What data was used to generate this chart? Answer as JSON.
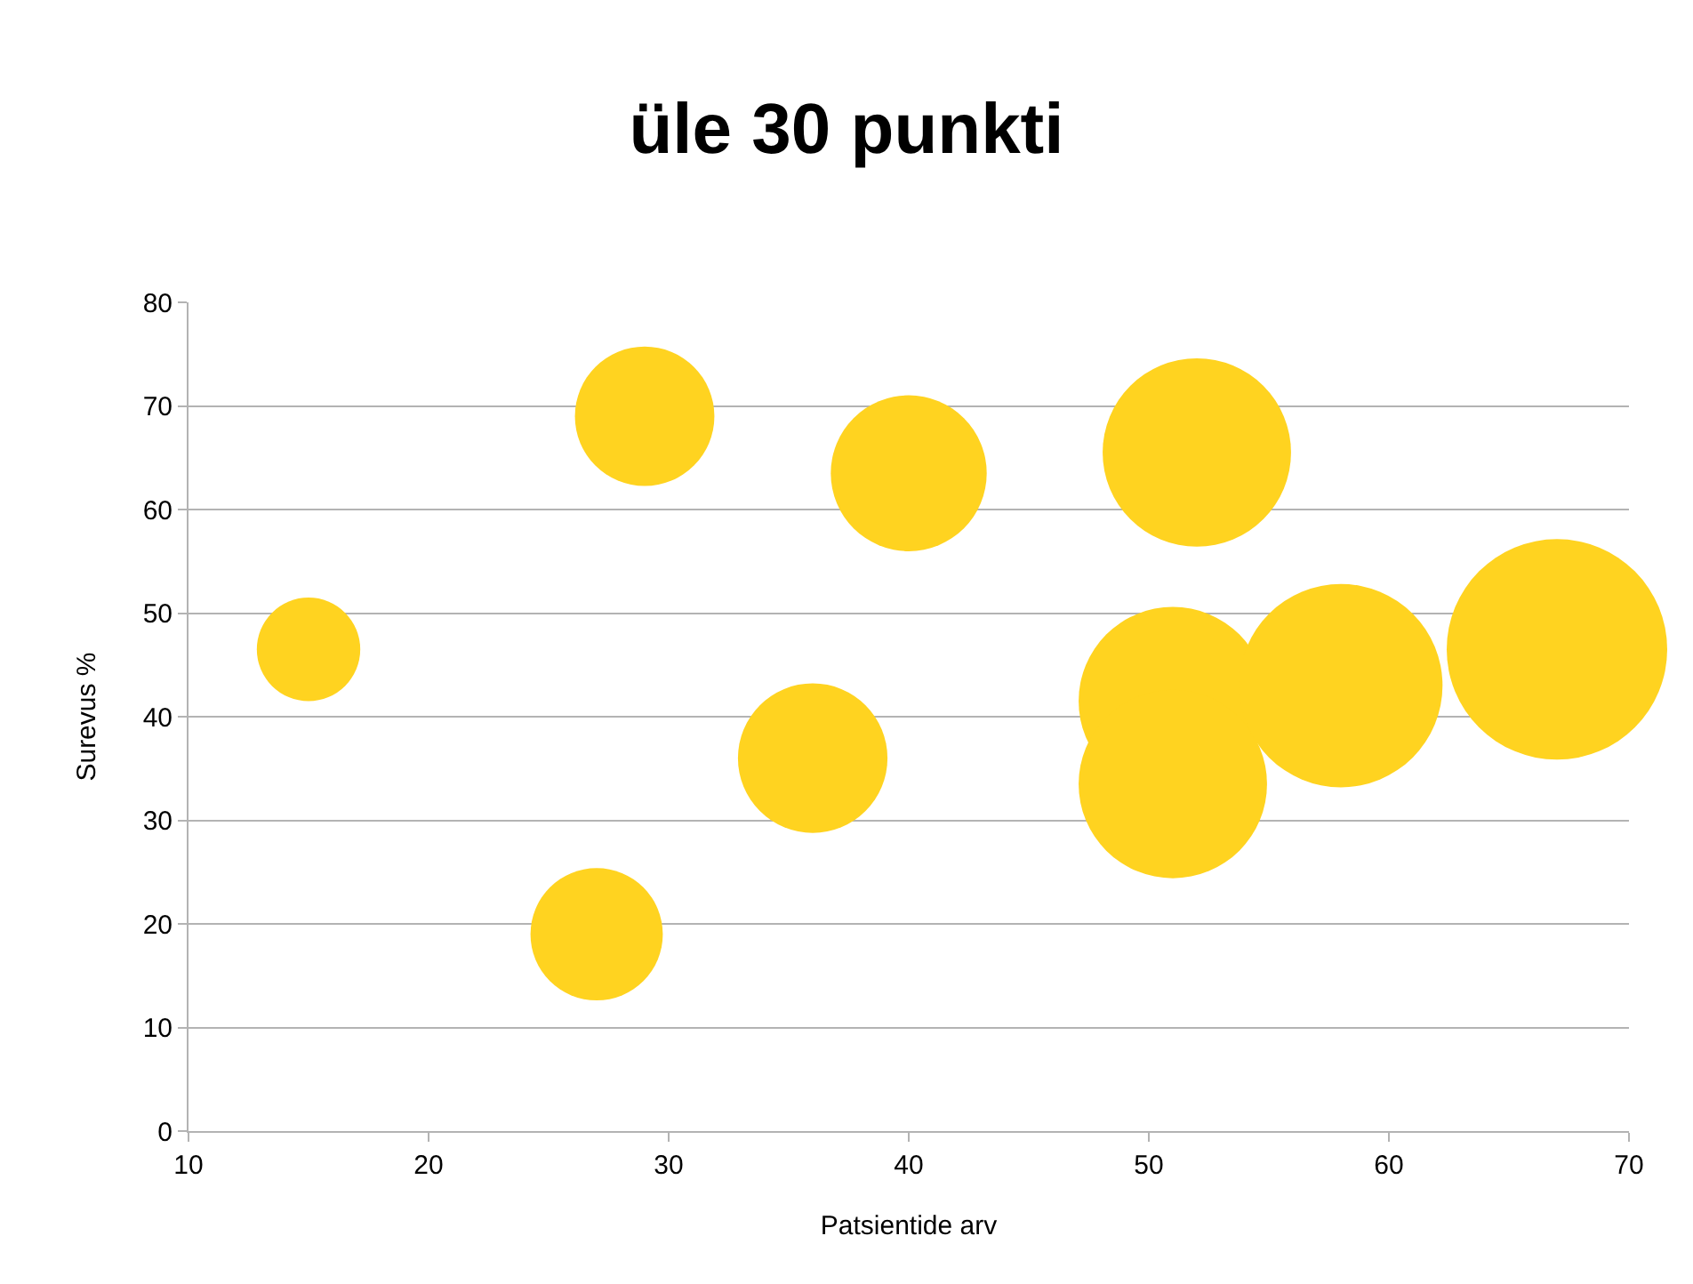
{
  "chart_data": {
    "type": "bubble",
    "title": "üle 30 punkti",
    "xlabel": "Patsientide arv",
    "ylabel": "Surevus %",
    "x": [
      15,
      29,
      27,
      36,
      40,
      52,
      51,
      51,
      58,
      67
    ],
    "values": [
      46.5,
      69,
      19,
      36,
      63.5,
      65.5,
      41.5,
      33.5,
      43,
      46.5
    ],
    "sizes": [
      0.22,
      0.4,
      0.36,
      0.46,
      0.5,
      0.73,
      0.73,
      0.73,
      0.85,
      1
    ],
    "color": "#ffd320",
    "xlim": [
      10,
      70
    ],
    "xticks": [
      10,
      20,
      30,
      40,
      50,
      60,
      70
    ],
    "ylim": [
      0,
      80
    ],
    "yticks": [
      0,
      10,
      20,
      30,
      40,
      50,
      60,
      70,
      80
    ],
    "grid": "y"
  }
}
